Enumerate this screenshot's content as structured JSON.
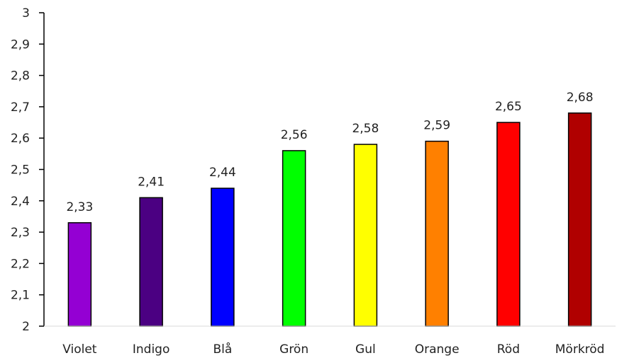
{
  "chart_data": {
    "type": "bar",
    "categories": [
      "Violet",
      "Indigo",
      "Blå",
      "Grön",
      "Gul",
      "Orange",
      "Röd",
      "Mörkröd"
    ],
    "values": [
      2.33,
      2.41,
      2.44,
      2.56,
      2.58,
      2.59,
      2.65,
      2.68
    ],
    "data_labels": [
      "2,33",
      "2,41",
      "2,44",
      "2,56",
      "2,58",
      "2,59",
      "2,65",
      "2,68"
    ],
    "colors": [
      "#9400D3",
      "#4B0082",
      "#0000FF",
      "#00FF00",
      "#FFFF00",
      "#FF8000",
      "#FF0000",
      "#B00000"
    ],
    "ylim": [
      2,
      3
    ],
    "yticks": [
      2,
      2.1,
      2.2,
      2.3,
      2.4,
      2.5,
      2.6,
      2.7,
      2.8,
      2.9,
      3
    ],
    "ytick_labels": [
      "2",
      "2,1",
      "2,2",
      "2,3",
      "2,4",
      "2,5",
      "2,6",
      "2,7",
      "2,8",
      "2,9",
      "3"
    ],
    "grid": false,
    "title": "",
    "xlabel": "",
    "ylabel": ""
  }
}
